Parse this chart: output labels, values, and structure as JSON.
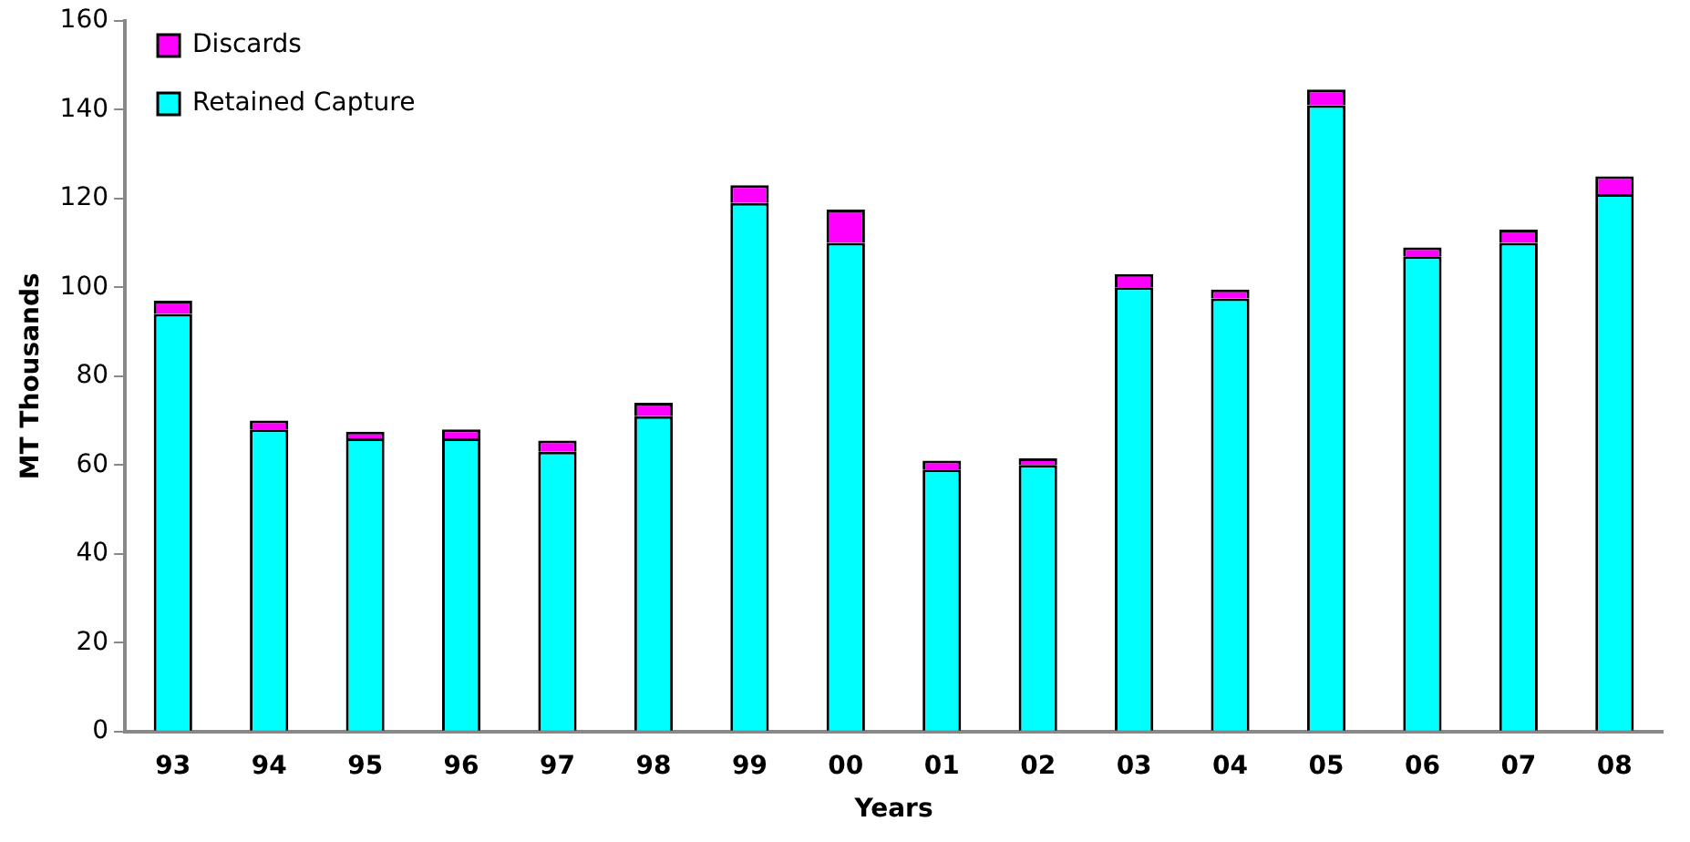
{
  "chart_data": {
    "type": "bar",
    "stacked": true,
    "xlabel": "Years",
    "ylabel": "MT Thousands",
    "categories": [
      "93",
      "94",
      "95",
      "96",
      "97",
      "98",
      "99",
      "00",
      "01",
      "02",
      "03",
      "04",
      "05",
      "06",
      "07",
      "08"
    ],
    "series": [
      {
        "name": "Retained Capture",
        "color": "#00ffff",
        "values": [
          94,
          68,
          66,
          66,
          63,
          71,
          119,
          110,
          59,
          60,
          100,
          97.5,
          141,
          107,
          110,
          121
        ]
      },
      {
        "name": "Discards",
        "color": "#ff00ff",
        "values": [
          3,
          2,
          1.5,
          2,
          2.5,
          3,
          4,
          7.5,
          2,
          1.5,
          3,
          2,
          3.5,
          2,
          3,
          4
        ]
      }
    ],
    "ylim": [
      0,
      160
    ],
    "yticks": [
      0,
      20,
      40,
      60,
      80,
      100,
      120,
      140,
      160
    ],
    "grid": false,
    "legend": "top left"
  }
}
